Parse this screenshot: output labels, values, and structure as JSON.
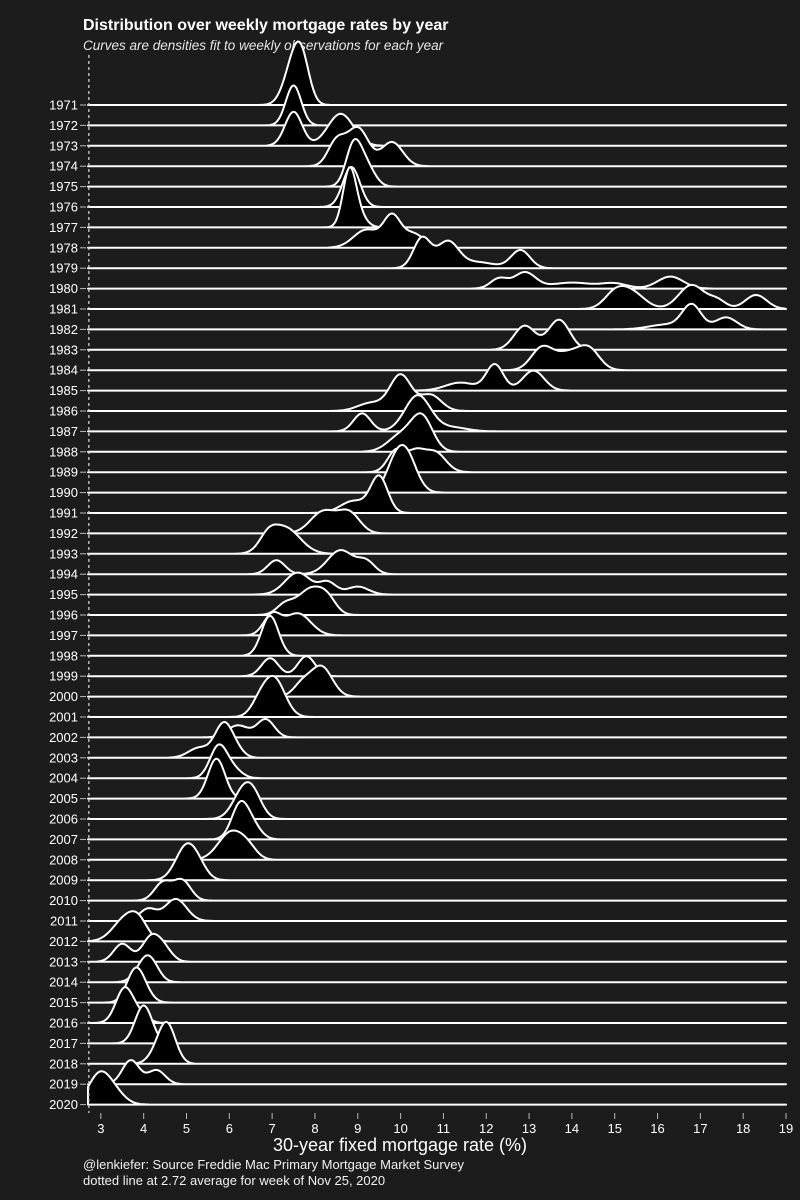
{
  "chart_data": {
    "type": "ridgeline",
    "title": "Distribution over weekly mortgage rates by year",
    "subtitle": "Curves are densities fit to weekly observations for each year",
    "xlabel": "30-year fixed mortgage rate (%)",
    "xlim": [
      2.7,
      19
    ],
    "xticks": [
      3,
      4,
      5,
      6,
      7,
      8,
      9,
      10,
      11,
      12,
      13,
      14,
      15,
      16,
      17,
      18,
      19
    ],
    "reference_line": 2.72,
    "caption": [
      "@lenkiefer: Source Freddie Mac Primary Mortgage Market Survey",
      "dotted line at 2.72 average for week of Nov 25, 2020"
    ],
    "series": [
      {
        "year": "1971",
        "peaks": [
          [
            7.5,
            1.0,
            0.22
          ],
          [
            7.7,
            0.8,
            0.18
          ]
        ]
      },
      {
        "year": "1972",
        "peaks": [
          [
            7.5,
            1.0,
            0.18
          ]
        ]
      },
      {
        "year": "1973",
        "peaks": [
          [
            7.5,
            0.85,
            0.2
          ],
          [
            8.6,
            0.8,
            0.3
          ]
        ]
      },
      {
        "year": "1974",
        "peaks": [
          [
            8.5,
            0.6,
            0.2
          ],
          [
            9.0,
            0.95,
            0.25
          ],
          [
            9.8,
            0.6,
            0.25
          ]
        ]
      },
      {
        "year": "1975",
        "peaks": [
          [
            8.9,
            1.0,
            0.18
          ],
          [
            9.2,
            0.5,
            0.2
          ]
        ]
      },
      {
        "year": "1976",
        "peaks": [
          [
            8.85,
            1.0,
            0.2
          ]
        ]
      },
      {
        "year": "1977",
        "peaks": [
          [
            8.8,
            1.2,
            0.15
          ],
          [
            8.95,
            0.4,
            0.2
          ]
        ]
      },
      {
        "year": "1978",
        "peaks": [
          [
            9.2,
            0.45,
            0.3
          ],
          [
            9.8,
            0.75,
            0.2
          ],
          [
            10.3,
            0.35,
            0.25
          ]
        ]
      },
      {
        "year": "1979",
        "peaks": [
          [
            10.5,
            0.75,
            0.2
          ],
          [
            11.1,
            0.65,
            0.25
          ],
          [
            11.8,
            0.15,
            0.4
          ],
          [
            12.8,
            0.45,
            0.22
          ]
        ]
      },
      {
        "year": "1980",
        "peaks": [
          [
            12.3,
            0.25,
            0.2
          ],
          [
            12.9,
            0.4,
            0.25
          ],
          [
            14.0,
            0.15,
            0.5
          ],
          [
            15.0,
            0.12,
            0.3
          ],
          [
            16.3,
            0.3,
            0.3
          ]
        ]
      },
      {
        "year": "1981",
        "peaks": [
          [
            15.0,
            0.35,
            0.25
          ],
          [
            15.4,
            0.4,
            0.3
          ],
          [
            16.8,
            0.6,
            0.3
          ],
          [
            17.4,
            0.2,
            0.2
          ],
          [
            18.3,
            0.35,
            0.25
          ]
        ]
      },
      {
        "year": "1982",
        "peaks": [
          [
            16.2,
            0.12,
            0.4
          ],
          [
            16.8,
            0.6,
            0.22
          ],
          [
            17.6,
            0.3,
            0.25
          ]
        ]
      },
      {
        "year": "1983",
        "peaks": [
          [
            12.9,
            0.6,
            0.25
          ],
          [
            13.7,
            0.75,
            0.25
          ]
        ]
      },
      {
        "year": "1984",
        "peaks": [
          [
            13.3,
            0.55,
            0.25
          ],
          [
            13.9,
            0.4,
            0.3
          ],
          [
            14.4,
            0.5,
            0.25
          ]
        ]
      },
      {
        "year": "1985",
        "peaks": [
          [
            11.4,
            0.2,
            0.35
          ],
          [
            12.2,
            0.65,
            0.2
          ],
          [
            13.1,
            0.5,
            0.25
          ]
        ]
      },
      {
        "year": "1986",
        "peaks": [
          [
            9.3,
            0.2,
            0.3
          ],
          [
            10.0,
            0.9,
            0.25
          ],
          [
            10.7,
            0.4,
            0.25
          ]
        ]
      },
      {
        "year": "1987",
        "peaks": [
          [
            9.1,
            0.45,
            0.2
          ],
          [
            10.4,
            0.9,
            0.3
          ],
          [
            11.2,
            0.1,
            0.35
          ]
        ]
      },
      {
        "year": "1988",
        "peaks": [
          [
            10.0,
            0.4,
            0.3
          ],
          [
            10.5,
            0.85,
            0.25
          ]
        ]
      },
      {
        "year": "1989",
        "peaks": [
          [
            9.9,
            0.55,
            0.2
          ],
          [
            10.35,
            0.45,
            0.2
          ],
          [
            10.8,
            0.5,
            0.25
          ]
        ]
      },
      {
        "year": "1990",
        "peaks": [
          [
            10.1,
            1.05,
            0.25
          ],
          [
            9.8,
            0.35,
            0.2
          ]
        ]
      },
      {
        "year": "1991",
        "peaks": [
          [
            8.9,
            0.3,
            0.3
          ],
          [
            9.5,
            0.9,
            0.2
          ]
        ]
      },
      {
        "year": "1992",
        "peaks": [
          [
            8.2,
            0.55,
            0.3
          ],
          [
            8.8,
            0.5,
            0.25
          ]
        ]
      },
      {
        "year": "1993",
        "peaks": [
          [
            7.3,
            0.65,
            0.35
          ],
          [
            6.9,
            0.3,
            0.2
          ]
        ]
      },
      {
        "year": "1994",
        "peaks": [
          [
            7.1,
            0.35,
            0.2
          ],
          [
            8.6,
            0.6,
            0.3
          ],
          [
            9.2,
            0.3,
            0.2
          ]
        ]
      },
      {
        "year": "1995",
        "peaks": [
          [
            7.6,
            0.55,
            0.3
          ],
          [
            8.3,
            0.3,
            0.2
          ],
          [
            9.0,
            0.2,
            0.25
          ]
        ]
      },
      {
        "year": "1996",
        "peaks": [
          [
            7.3,
            0.25,
            0.2
          ],
          [
            7.9,
            0.65,
            0.3
          ],
          [
            8.3,
            0.3,
            0.2
          ]
        ]
      },
      {
        "year": "1997",
        "peaks": [
          [
            7.0,
            0.5,
            0.2
          ],
          [
            7.6,
            0.55,
            0.3
          ]
        ]
      },
      {
        "year": "1998",
        "peaks": [
          [
            6.95,
            1.0,
            0.2
          ]
        ]
      },
      {
        "year": "1999",
        "peaks": [
          [
            6.95,
            0.45,
            0.2
          ],
          [
            7.8,
            0.5,
            0.2
          ]
        ]
      },
      {
        "year": "2000",
        "peaks": [
          [
            8.15,
            0.75,
            0.25
          ],
          [
            7.7,
            0.3,
            0.2
          ]
        ]
      },
      {
        "year": "2001",
        "peaks": [
          [
            7.05,
            0.95,
            0.25
          ],
          [
            6.7,
            0.3,
            0.2
          ]
        ]
      },
      {
        "year": "2002",
        "peaks": [
          [
            6.2,
            0.3,
            0.25
          ],
          [
            6.85,
            0.45,
            0.2
          ]
        ]
      },
      {
        "year": "2003",
        "peaks": [
          [
            5.3,
            0.25,
            0.25
          ],
          [
            5.85,
            0.75,
            0.2
          ],
          [
            6.1,
            0.25,
            0.2
          ]
        ]
      },
      {
        "year": "2004",
        "peaks": [
          [
            5.75,
            0.8,
            0.2
          ],
          [
            6.1,
            0.2,
            0.2
          ]
        ]
      },
      {
        "year": "2005",
        "peaks": [
          [
            5.7,
            1.0,
            0.2
          ]
        ]
      },
      {
        "year": "2006",
        "peaks": [
          [
            6.35,
            0.75,
            0.25
          ],
          [
            6.6,
            0.3,
            0.2
          ]
        ]
      },
      {
        "year": "2007",
        "peaks": [
          [
            6.25,
            0.85,
            0.2
          ],
          [
            6.55,
            0.3,
            0.2
          ]
        ]
      },
      {
        "year": "2008",
        "peaks": [
          [
            6.05,
            0.7,
            0.3
          ],
          [
            6.45,
            0.2,
            0.2
          ]
        ]
      },
      {
        "year": "2009",
        "peaks": [
          [
            5.0,
            0.85,
            0.25
          ],
          [
            5.3,
            0.2,
            0.2
          ]
        ]
      },
      {
        "year": "2010",
        "peaks": [
          [
            4.45,
            0.45,
            0.2
          ],
          [
            4.9,
            0.5,
            0.2
          ]
        ]
      },
      {
        "year": "2011",
        "peaks": [
          [
            4.1,
            0.3,
            0.2
          ],
          [
            4.75,
            0.55,
            0.25
          ]
        ]
      },
      {
        "year": "2012",
        "peaks": [
          [
            3.6,
            0.6,
            0.3
          ],
          [
            3.9,
            0.3,
            0.2
          ]
        ]
      },
      {
        "year": "2013",
        "peaks": [
          [
            3.5,
            0.45,
            0.2
          ],
          [
            4.15,
            0.55,
            0.2
          ],
          [
            4.45,
            0.35,
            0.2
          ]
        ]
      },
      {
        "year": "2014",
        "peaks": [
          [
            4.15,
            0.5,
            0.2
          ],
          [
            3.95,
            0.25,
            0.2
          ]
        ]
      },
      {
        "year": "2015",
        "peaks": [
          [
            3.8,
            0.75,
            0.2
          ],
          [
            4.0,
            0.2,
            0.2
          ]
        ]
      },
      {
        "year": "2016",
        "peaks": [
          [
            3.55,
            0.85,
            0.2
          ],
          [
            3.9,
            0.2,
            0.2
          ]
        ]
      },
      {
        "year": "2017",
        "peaks": [
          [
            4.0,
            0.95,
            0.2
          ]
        ]
      },
      {
        "year": "2018",
        "peaks": [
          [
            4.55,
            0.95,
            0.2
          ],
          [
            4.3,
            0.2,
            0.2
          ]
        ]
      },
      {
        "year": "2019",
        "peaks": [
          [
            3.7,
            0.6,
            0.2
          ],
          [
            4.3,
            0.35,
            0.2
          ]
        ]
      },
      {
        "year": "2020",
        "peaks": [
          [
            2.95,
            0.7,
            0.25
          ],
          [
            3.3,
            0.3,
            0.25
          ]
        ]
      }
    ]
  }
}
